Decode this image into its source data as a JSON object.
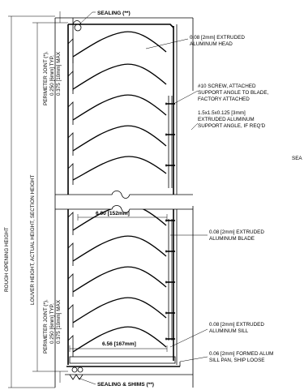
{
  "labels": {
    "sealing_top": "SEALING (**)",
    "head_1": "0.08 [2mm] EXTRUDED",
    "head_2": "ALUMINUM HEAD",
    "screw_1": "#10 SCREW, ATTACHED",
    "screw_2": "SUPPORT ANGLE TO BLADE,",
    "screw_3": "FACTORY ATTACHED",
    "angle_1": "1.5x1.5x0.125 [3mm]",
    "angle_2": "EXTRUDED ALUMINUM",
    "angle_3": "SUPPORT ANGLE, IF REQ'D",
    "sea_cut": "SEA",
    "dim_600": "6.00 [152mm]",
    "blade_1": "0.08 [2mm] EXTRUDED",
    "blade_2": "ALUMINUM BLADE",
    "sill_1": "0.08 [2mm] EXTRUDED",
    "sill_2": "ALUMINUM SILL",
    "dim_656": "6.56 [167mm]",
    "pan_1": "0.06 [2mm] FORMED ALUM",
    "pan_2": "SILL PAN, SHIP LOOSE",
    "sealing_bottom": "SEALING & SHIMS (**)",
    "rough_opening": "ROUGH OPENING HEIGHT",
    "louver_height": "LOUVER HEIGHT, ACTUAL HEIGHT, SECTION HEIGHT",
    "perim_top_1": "PERIMETER JOINT (*),",
    "perim_top_2": "0.250 [6mm] TYP,",
    "perim_top_3": "0.375 [10mm] MAX",
    "perim_bot_1": "PERIMETER JOINT (*),",
    "perim_bot_2": "0.250 [6mm] TYP,",
    "perim_bot_3": "0.375 [10mm] MAX"
  }
}
